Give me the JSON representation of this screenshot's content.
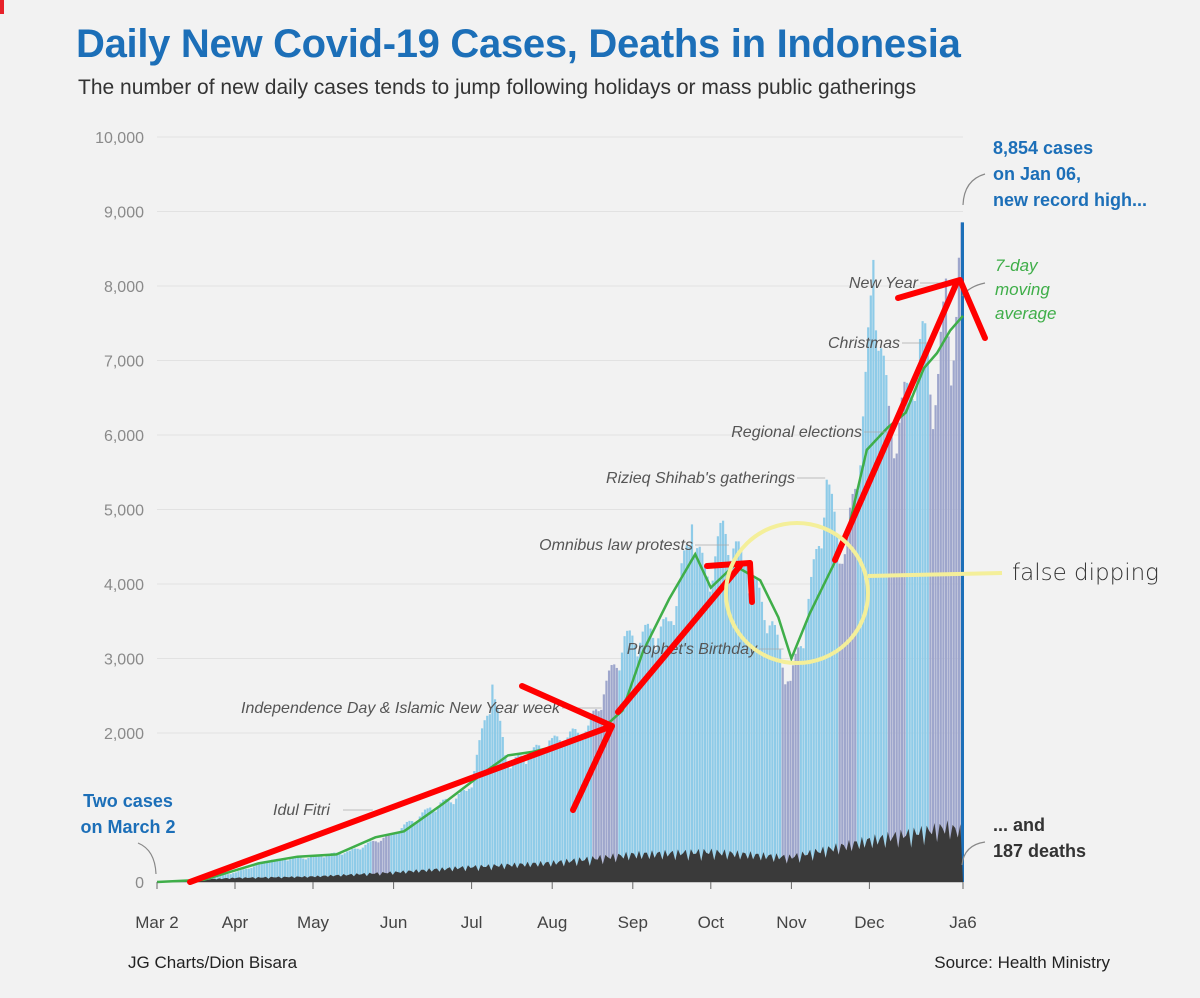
{
  "title": "Daily New Covid-19 Cases, Deaths in Indonesia",
  "subtitle": "The number of new daily cases tends to jump following holidays or mass public gatherings",
  "credit": "JG Charts/Dion Bisara",
  "source": "Source: Health Ministry",
  "colors": {
    "cases_bar": "#8ecbe8",
    "holiday_bar": "#9ea6cc",
    "moving_average": "#3fae49",
    "deaths": "#3a3a3a",
    "label_blue": "#1c6fb8",
    "red_annotation": "#ff0000",
    "yellow_annotation": "#f4ef9a"
  },
  "chart_data": {
    "type": "bar",
    "title": "Daily New Covid-19 Cases, Deaths in Indonesia",
    "subtitle": "The number of new daily cases tends to jump following holidays or mass public gatherings",
    "ylim": [
      0,
      10000
    ],
    "y_ticks": [
      0,
      2000,
      3000,
      4000,
      5000,
      6000,
      7000,
      8000,
      9000,
      10000
    ],
    "y_tick_labels": [
      "0",
      "2,000",
      "3,000",
      "4,000",
      "5,000",
      "6,000",
      "7,000",
      "8,000",
      "9,000",
      "10,000"
    ],
    "x_tick_labels": [
      {
        "date": "2020-03-02",
        "label": "Mar 2"
      },
      {
        "date": "2020-04-01",
        "label": "Apr"
      },
      {
        "date": "2020-05-01",
        "label": "May"
      },
      {
        "date": "2020-06-01",
        "label": "Jun"
      },
      {
        "date": "2020-07-01",
        "label": "Jul"
      },
      {
        "date": "2020-08-01",
        "label": "Aug"
      },
      {
        "date": "2020-09-01",
        "label": "Sep"
      },
      {
        "date": "2020-10-01",
        "label": "Oct"
      },
      {
        "date": "2020-11-01",
        "label": "Nov"
      },
      {
        "date": "2020-12-01",
        "label": "Dec"
      },
      {
        "date": "2021-01-06",
        "label": "Ja6"
      }
    ],
    "x_range": [
      "2020-03-02",
      "2021-01-06"
    ],
    "grid": "horizontal",
    "series": [
      {
        "name": "",
        "kind": "bar",
        "description_values_by_date": [
          [
            "2020-03-02",
            2
          ],
          [
            "2020-03-15",
            20
          ],
          [
            "2020-03-31",
            120
          ],
          [
            "2020-04-15",
            300
          ],
          [
            "2020-04-30",
            340
          ],
          [
            "2020-05-15",
            420
          ],
          [
            "2020-05-31",
            650
          ],
          [
            "2020-06-15",
            1000
          ],
          [
            "2020-06-30",
            1250
          ],
          [
            "2020-07-09",
            2650
          ],
          [
            "2020-07-15",
            1600
          ],
          [
            "2020-07-31",
            1900
          ],
          [
            "2020-08-15",
            2100
          ],
          [
            "2020-08-29",
            3300
          ],
          [
            "2020-09-15",
            3500
          ],
          [
            "2020-09-24",
            4800
          ],
          [
            "2020-09-30",
            4100
          ],
          [
            "2020-10-06",
            4850
          ],
          [
            "2020-10-15",
            4300
          ],
          [
            "2020-10-25",
            3500
          ],
          [
            "2020-11-01",
            2700
          ],
          [
            "2020-11-08",
            3800
          ],
          [
            "2020-11-15",
            5400
          ],
          [
            "2020-11-22",
            4400
          ],
          [
            "2020-11-29",
            6250
          ],
          [
            "2020-12-03",
            8350
          ],
          [
            "2020-12-10",
            6000
          ],
          [
            "2020-12-16",
            6700
          ],
          [
            "2020-12-23",
            7500
          ],
          [
            "2020-12-27",
            6400
          ],
          [
            "2020-12-31",
            8100
          ],
          [
            "2021-01-03",
            7000
          ],
          [
            "2021-01-06",
            8854
          ]
        ]
      },
      {
        "name": "7-day moving average",
        "kind": "line",
        "values_by_date": [
          [
            "2020-03-02",
            0
          ],
          [
            "2020-03-20",
            30
          ],
          [
            "2020-04-10",
            250
          ],
          [
            "2020-04-25",
            340
          ],
          [
            "2020-05-10",
            370
          ],
          [
            "2020-05-25",
            600
          ],
          [
            "2020-06-05",
            680
          ],
          [
            "2020-06-20",
            1050
          ],
          [
            "2020-07-05",
            1450
          ],
          [
            "2020-07-15",
            1700
          ],
          [
            "2020-07-25",
            1750
          ],
          [
            "2020-08-05",
            1850
          ],
          [
            "2020-08-20",
            2050
          ],
          [
            "2020-08-28",
            2300
          ],
          [
            "2020-09-05",
            3100
          ],
          [
            "2020-09-15",
            3800
          ],
          [
            "2020-09-25",
            4400
          ],
          [
            "2020-10-01",
            3950
          ],
          [
            "2020-10-10",
            4250
          ],
          [
            "2020-10-20",
            4050
          ],
          [
            "2020-10-27",
            3550
          ],
          [
            "2020-11-01",
            3000
          ],
          [
            "2020-11-08",
            3600
          ],
          [
            "2020-11-15",
            4100
          ],
          [
            "2020-11-22",
            4600
          ],
          [
            "2020-11-30",
            5800
          ],
          [
            "2020-12-08",
            6100
          ],
          [
            "2020-12-15",
            6300
          ],
          [
            "2020-12-22",
            6900
          ],
          [
            "2020-12-27",
            7100
          ],
          [
            "2021-01-01",
            7400
          ],
          [
            "2021-01-06",
            7600
          ]
        ]
      },
      {
        "name": "deaths",
        "kind": "area",
        "values_by_date": [
          [
            "2020-03-02",
            0
          ],
          [
            "2020-04-01",
            15
          ],
          [
            "2020-05-01",
            20
          ],
          [
            "2020-06-01",
            35
          ],
          [
            "2020-07-01",
            55
          ],
          [
            "2020-08-01",
            70
          ],
          [
            "2020-09-01",
            100
          ],
          [
            "2020-10-01",
            110
          ],
          [
            "2020-11-01",
            90
          ],
          [
            "2020-12-01",
            150
          ],
          [
            "2021-01-01",
            200
          ],
          [
            "2021-01-06",
            187
          ]
        ]
      }
    ],
    "holiday_dates": [
      "2020-05-24",
      "2020-08-17",
      "2020-08-20",
      "2020-10-29",
      "2020-11-20",
      "2020-12-09",
      "2020-12-25",
      "2021-01-01"
    ],
    "annotations": {
      "events": [
        {
          "label": "Idul Fitri",
          "date": "2020-05-24",
          "value": 1000
        },
        {
          "label": "Independence Day & Islamic New Year week",
          "date": "2020-08-20",
          "value": 2300
        },
        {
          "label": "Prophet's Birthday",
          "date": "2020-10-29",
          "value": 3100
        },
        {
          "label": "Omnibus law protests",
          "date": "2020-10-08",
          "value": 4500
        },
        {
          "label": "Rizieq Shihab's gatherings",
          "date": "2020-11-14",
          "value": 5400
        },
        {
          "label": "Regional elections",
          "date": "2020-12-09",
          "value": 6100
        },
        {
          "label": "Christmas",
          "date": "2020-12-25",
          "value": 7400
        },
        {
          "label": "New Year",
          "date": "2021-01-01",
          "value": 8100
        }
      ],
      "start_label": [
        "Two cases",
        "on March 2"
      ],
      "record_label": [
        "8,854 cases",
        "on Jan 06,",
        "new record high..."
      ],
      "moving_average_label": [
        "7-day",
        "moving",
        "average"
      ],
      "deaths_label": [
        "... and",
        "187 deaths"
      ],
      "handwritten_note": "false dipping"
    }
  }
}
